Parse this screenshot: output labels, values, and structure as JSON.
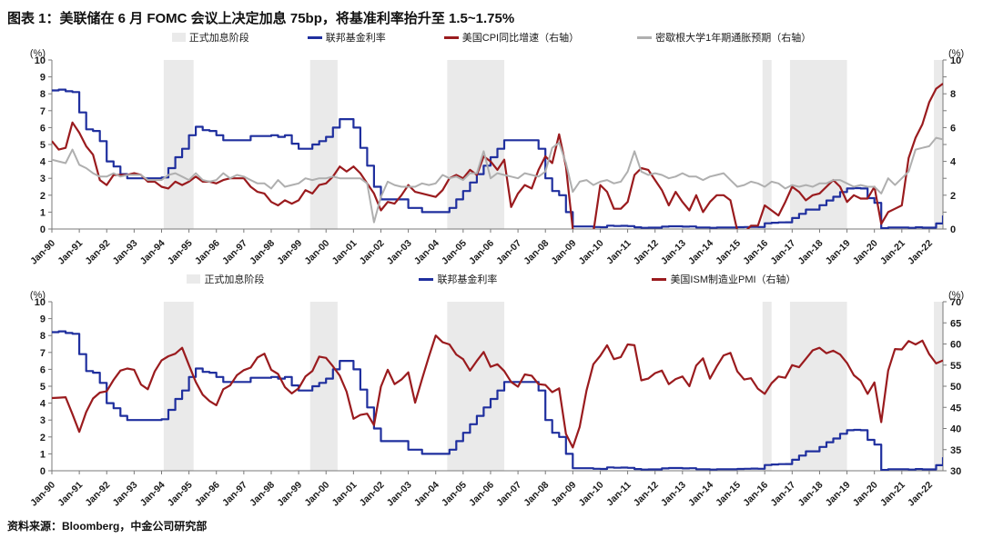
{
  "page": {
    "title": "图表 1：美联储在 6 月 FOMC 会议上决定加息 75bp，将基准利率抬升至 1.5~1.75%",
    "source": "资料来源：Bloomberg，中金公司研究部"
  },
  "colors": {
    "blue": "#1F2F9E",
    "dark_red": "#9A1B1E",
    "gray_line": "#AFAFAF",
    "band": "#EAEAEA",
    "axis": "#7a7a7a",
    "tick_text": "#1a1a1a"
  },
  "x_axis": {
    "start_year": 1990,
    "step_years": 0.25,
    "end_year": 2022.5,
    "tick_labels": [
      "Jan-90",
      "Jan-91",
      "Jan-92",
      "Jan-93",
      "Jan-94",
      "Jan-95",
      "Jan-96",
      "Jan-97",
      "Jan-98",
      "Jan-99",
      "Jan-00",
      "Jan-01",
      "Jan-02",
      "Jan-03",
      "Jan-04",
      "Jan-05",
      "Jan-06",
      "Jan-07",
      "Jan-08",
      "Jan-09",
      "Jan-10",
      "Jan-11",
      "Jan-12",
      "Jan-13",
      "Jan-14",
      "Jan-15",
      "Jan-16",
      "Jan-17",
      "Jan-18",
      "Jan-19",
      "Jan-20",
      "Jan-21",
      "Jan-22"
    ]
  },
  "hike_periods_years": [
    [
      1994.08,
      1995.17
    ],
    [
      1999.42,
      2000.42
    ],
    [
      2004.42,
      2006.5
    ],
    [
      2015.92,
      2016.25
    ],
    [
      2016.92,
      2019.0
    ],
    [
      2022.17,
      2022.5
    ]
  ],
  "series_values": {
    "fed_funds": [
      8.2,
      8.25,
      8.15,
      8.1,
      6.9,
      5.9,
      5.8,
      5.2,
      4.0,
      3.7,
      3.25,
      3.0,
      3.0,
      3.0,
      3.0,
      3.0,
      3.05,
      3.6,
      4.25,
      4.75,
      5.55,
      6.05,
      5.85,
      5.8,
      5.55,
      5.25,
      5.25,
      5.25,
      5.25,
      5.5,
      5.5,
      5.5,
      5.55,
      5.45,
      5.55,
      5.05,
      4.75,
      4.75,
      5.0,
      5.2,
      5.45,
      6.0,
      6.5,
      6.5,
      6.0,
      4.8,
      3.75,
      2.5,
      1.75,
      1.75,
      1.75,
      1.75,
      1.25,
      1.25,
      1.0,
      1.0,
      1.0,
      1.0,
      1.25,
      1.75,
      2.25,
      2.75,
      3.25,
      3.75,
      4.25,
      4.75,
      5.25,
      5.25,
      5.25,
      5.25,
      5.25,
      4.75,
      3.0,
      2.25,
      2.0,
      1.0,
      0.15,
      0.15,
      0.15,
      0.12,
      0.11,
      0.2,
      0.18,
      0.19,
      0.17,
      0.1,
      0.07,
      0.08,
      0.08,
      0.14,
      0.16,
      0.16,
      0.14,
      0.15,
      0.09,
      0.09,
      0.07,
      0.09,
      0.09,
      0.09,
      0.11,
      0.12,
      0.13,
      0.12,
      0.34,
      0.37,
      0.39,
      0.4,
      0.65,
      0.9,
      1.15,
      1.15,
      1.41,
      1.69,
      1.91,
      2.19,
      2.4,
      2.42,
      2.4,
      1.83,
      1.55,
      0.05,
      0.09,
      0.09,
      0.09,
      0.07,
      0.1,
      0.08,
      0.08,
      0.33,
      0.8
    ],
    "cpi_yoy": [
      5.2,
      4.7,
      4.8,
      6.3,
      5.7,
      4.9,
      4.4,
      2.9,
      2.6,
      3.2,
      3.2,
      3.2,
      3.3,
      3.2,
      2.8,
      2.8,
      2.5,
      2.4,
      2.8,
      2.6,
      2.8,
      3.1,
      2.8,
      2.8,
      2.7,
      2.9,
      3.0,
      3.0,
      3.0,
      2.5,
      2.2,
      2.1,
      1.6,
      1.4,
      1.7,
      1.5,
      1.7,
      2.3,
      2.1,
      2.6,
      2.7,
      3.1,
      3.7,
      3.4,
      3.7,
      3.3,
      2.7,
      2.1,
      1.1,
      1.6,
      1.5,
      2.0,
      2.6,
      2.2,
      2.1,
      2.0,
      1.9,
      2.3,
      3.0,
      3.2,
      3.0,
      3.5,
      3.2,
      4.3,
      4.0,
      3.5,
      4.1,
      1.3,
      2.1,
      2.6,
      2.4,
      3.5,
      4.3,
      3.9,
      5.6,
      3.7,
      0.0,
      -0.7,
      -2.1,
      -0.2,
      2.6,
      2.2,
      1.2,
      1.2,
      1.6,
      3.2,
      3.6,
      3.5,
      2.9,
      2.3,
      1.4,
      2.2,
      1.6,
      1.1,
      2.0,
      1.0,
      1.6,
      2.0,
      2.0,
      1.7,
      -0.1,
      -0.2,
      0.2,
      0.2,
      1.4,
      1.1,
      0.8,
      1.6,
      2.5,
      2.2,
      1.7,
      2.0,
      2.1,
      2.5,
      2.9,
      2.5,
      1.6,
      2.0,
      1.8,
      1.8,
      2.5,
      0.3,
      1.0,
      1.2,
      1.4,
      4.2,
      5.4,
      6.2,
      7.5,
      8.3,
      8.6
    ],
    "michigan_1y_exp": [
      4.1,
      4.0,
      3.9,
      4.7,
      3.8,
      3.6,
      3.3,
      3.1,
      3.1,
      3.3,
      3.1,
      3.2,
      3.2,
      3.2,
      2.9,
      2.9,
      2.9,
      3.2,
      3.3,
      3.1,
      2.9,
      3.3,
      2.9,
      2.8,
      2.9,
      3.3,
      3.0,
      3.2,
      3.1,
      2.9,
      2.7,
      2.7,
      2.4,
      2.9,
      2.5,
      2.6,
      2.7,
      3.0,
      2.9,
      3.0,
      3.0,
      3.1,
      3.0,
      3.0,
      3.0,
      3.0,
      2.7,
      0.4,
      1.9,
      2.8,
      2.6,
      2.5,
      2.5,
      2.5,
      2.7,
      2.6,
      2.7,
      3.2,
      3.0,
      3.1,
      2.9,
      3.3,
      3.3,
      4.6,
      3.0,
      3.3,
      3.2,
      3.1,
      3.0,
      3.3,
      3.2,
      3.1,
      3.4,
      4.8,
      5.1,
      3.9,
      2.2,
      2.8,
      2.9,
      2.6,
      2.8,
      2.9,
      2.7,
      2.8,
      3.4,
      4.6,
      3.4,
      3.2,
      3.3,
      3.2,
      3.0,
      3.1,
      3.3,
      3.1,
      3.1,
      2.9,
      3.1,
      3.2,
      3.3,
      2.9,
      2.5,
      2.6,
      2.8,
      2.7,
      2.5,
      2.8,
      2.7,
      2.4,
      2.6,
      2.5,
      2.6,
      2.5,
      2.7,
      2.7,
      2.9,
      2.9,
      2.7,
      2.5,
      2.6,
      2.5,
      2.5,
      2.1,
      3.0,
      2.6,
      3.0,
      3.4,
      4.7,
      4.8,
      4.9,
      5.4,
      5.3
    ],
    "ism_pmi": [
      47.2,
      47.3,
      47.4,
      43.4,
      39.2,
      43.9,
      47.1,
      48.5,
      48.8,
      51.5,
      53.7,
      54.2,
      53.9,
      50.4,
      49.3,
      53.5,
      56.1,
      57.1,
      57.7,
      59.1,
      55.0,
      51.0,
      48.0,
      46.5,
      45.5,
      49.3,
      50.2,
      52.6,
      53.8,
      54.4,
      56.8,
      57.7,
      53.9,
      52.9,
      49.8,
      48.3,
      49.5,
      52.3,
      53.6,
      57.0,
      56.7,
      54.7,
      52.5,
      48.7,
      42.3,
      43.2,
      43.5,
      40.8,
      49.9,
      53.9,
      50.5,
      51.6,
      53.3,
      46.1,
      51.7,
      57.0,
      62.0,
      60.4,
      59.9,
      57.5,
      56.4,
      53.7,
      56.0,
      58.1,
      54.6,
      55.2,
      53.6,
      51.0,
      49.9,
      52.8,
      52.5,
      50.5,
      50.3,
      48.6,
      49.5,
      38.7,
      35.5,
      40.4,
      49.0,
      55.2,
      57.2,
      59.7,
      56.4,
      56.9,
      59.9,
      59.7,
      51.4,
      51.8,
      53.1,
      53.7,
      50.5,
      51.7,
      52.3,
      50.0,
      54.9,
      56.6,
      51.8,
      54.7,
      57.3,
      57.9,
      53.5,
      51.6,
      51.9,
      49.4,
      48.2,
      50.7,
      52.3,
      52.0,
      55.0,
      54.5,
      56.5,
      58.5,
      59.1,
      57.8,
      58.4,
      57.5,
      55.5,
      52.6,
      51.3,
      48.2,
      50.9,
      41.5,
      53.7,
      58.8,
      58.7,
      60.7,
      59.9,
      60.8,
      57.6,
      55.4,
      56.1
    ]
  },
  "chart_data": [
    {
      "type": "line",
      "position": "top",
      "unit_left": "(%)",
      "unit_right": "(%)",
      "ylim_left": [
        0,
        10
      ],
      "yticks_left": [
        0,
        1,
        2,
        3,
        4,
        5,
        6,
        7,
        8,
        9,
        10
      ],
      "ylim_right": [
        0,
        10
      ],
      "yticks_right": [
        0,
        2,
        4,
        6,
        8,
        10
      ],
      "legend": [
        {
          "key": "hike-band",
          "label": "正式加息阶段",
          "swatch": "band"
        },
        {
          "key": "fed-funds",
          "label": "联邦基金利率",
          "swatch": "line",
          "color": "blue"
        },
        {
          "key": "cpi",
          "label": "美国CPI同比增速（右轴）",
          "swatch": "line",
          "color": "dark_red"
        },
        {
          "key": "michigan",
          "label": "密歇根大学1年期通胀预期（右轴）",
          "swatch": "line",
          "color": "gray_line"
        }
      ],
      "series": [
        {
          "name": "联邦基金利率",
          "values_key": "fed_funds",
          "axis": "left",
          "style": "step",
          "color": "blue",
          "width": 2.2
        },
        {
          "name": "美国CPI同比增速（右轴）",
          "values_key": "cpi_yoy",
          "axis": "right",
          "style": "line",
          "color": "dark_red",
          "width": 2.2
        },
        {
          "name": "密歇根大学1年期通胀预期（右轴）",
          "values_key": "michigan_1y_exp",
          "axis": "right",
          "style": "line",
          "color": "gray_line",
          "width": 2
        }
      ]
    },
    {
      "type": "line",
      "position": "bottom",
      "unit_left": "(%)",
      "unit_right": "(%)",
      "ylim_left": [
        0,
        10
      ],
      "yticks_left": [
        0,
        1,
        2,
        3,
        4,
        5,
        6,
        7,
        8,
        9,
        10
      ],
      "ylim_right": [
        30,
        70
      ],
      "yticks_right": [
        30,
        35,
        40,
        45,
        50,
        55,
        60,
        65,
        70
      ],
      "legend": [
        {
          "key": "hike-band",
          "label": "正式加息阶段",
          "swatch": "band"
        },
        {
          "key": "fed-funds",
          "label": "联邦基金利率",
          "swatch": "line",
          "color": "blue"
        },
        {
          "key": "ism",
          "label": "美国ISM制造业PMI（右轴）",
          "swatch": "line",
          "color": "dark_red"
        }
      ],
      "series": [
        {
          "name": "联邦基金利率",
          "values_key": "fed_funds",
          "axis": "left",
          "style": "step",
          "color": "blue",
          "width": 2.2
        },
        {
          "name": "美国ISM制造业PMI（右轴）",
          "values_key": "ism_pmi",
          "axis": "right",
          "style": "line",
          "color": "dark_red",
          "width": 2.2
        }
      ]
    }
  ]
}
